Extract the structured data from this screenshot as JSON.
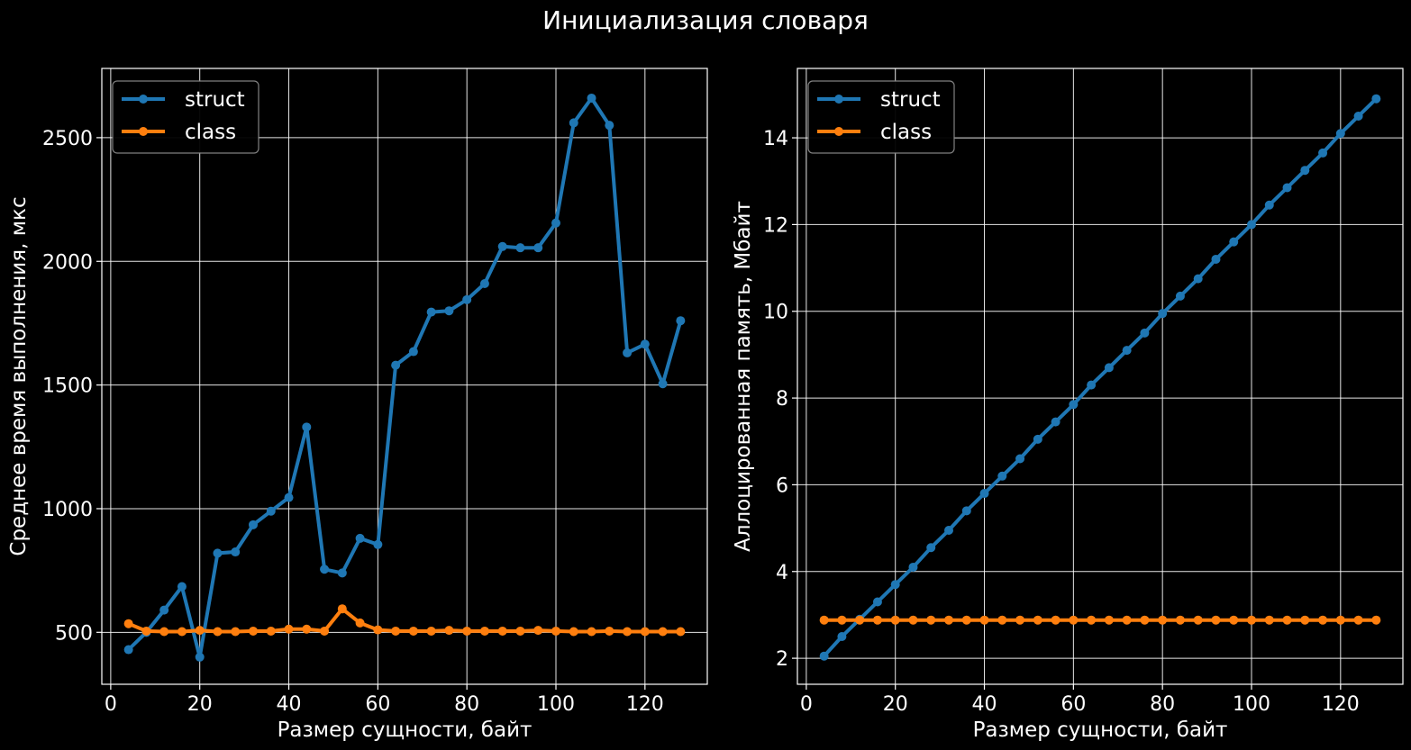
{
  "figure": {
    "title": "Инициализация словаря"
  },
  "colors": {
    "struct": "#1f77b4",
    "class": "#ff7f0e",
    "background": "#000000",
    "foreground": "#ffffff"
  },
  "chart_data": [
    {
      "type": "line",
      "xlabel": "Размер сущности, байт",
      "ylabel": "Среднее время выполнения, мкс",
      "xlim": [
        -2,
        134
      ],
      "ylim": [
        290,
        2780
      ],
      "xticks": [
        0,
        20,
        40,
        60,
        80,
        100,
        120
      ],
      "yticks": [
        500,
        1000,
        1500,
        2000,
        2500
      ],
      "grid": true,
      "legend": "top-left",
      "x": [
        4,
        8,
        12,
        16,
        20,
        24,
        28,
        32,
        36,
        40,
        44,
        48,
        52,
        56,
        60,
        64,
        68,
        72,
        76,
        80,
        84,
        88,
        92,
        96,
        100,
        104,
        108,
        112,
        116,
        120,
        124,
        128
      ],
      "series": [
        {
          "name": "struct",
          "values": [
            430,
            500,
            590,
            685,
            400,
            820,
            825,
            935,
            990,
            1045,
            1330,
            755,
            740,
            880,
            855,
            1580,
            1635,
            1795,
            1800,
            1845,
            1910,
            2060,
            2055,
            2055,
            2155,
            2560,
            2660,
            2550,
            1630,
            1665,
            1505,
            1760
          ]
        },
        {
          "name": "class",
          "values": [
            535,
            505,
            503,
            503,
            508,
            503,
            503,
            505,
            505,
            513,
            513,
            505,
            595,
            538,
            510,
            505,
            505,
            505,
            508,
            505,
            505,
            505,
            505,
            508,
            505,
            503,
            503,
            505,
            503,
            503,
            503,
            503
          ]
        }
      ]
    },
    {
      "type": "line",
      "xlabel": "Размер сущности, байт",
      "ylabel": "Аллоцированная память, Мбайт",
      "xlim": [
        -2,
        134
      ],
      "ylim": [
        1.4,
        15.6
      ],
      "xticks": [
        0,
        20,
        40,
        60,
        80,
        100,
        120
      ],
      "yticks": [
        2,
        4,
        6,
        8,
        10,
        12,
        14
      ],
      "grid": true,
      "legend": "top-left",
      "x": [
        4,
        8,
        12,
        16,
        20,
        24,
        28,
        32,
        36,
        40,
        44,
        48,
        52,
        56,
        60,
        64,
        68,
        72,
        76,
        80,
        84,
        88,
        92,
        96,
        100,
        104,
        108,
        112,
        116,
        120,
        124,
        128
      ],
      "series": [
        {
          "name": "struct",
          "values": [
            2.05,
            2.5,
            2.9,
            3.3,
            3.7,
            4.1,
            4.55,
            4.95,
            5.4,
            5.8,
            6.2,
            6.6,
            7.05,
            7.45,
            7.85,
            8.3,
            8.7,
            9.1,
            9.5,
            9.95,
            10.35,
            10.75,
            11.2,
            11.6,
            12.0,
            12.45,
            12.85,
            13.25,
            13.65,
            14.1,
            14.5,
            14.9
          ]
        },
        {
          "name": "class",
          "values": [
            2.88,
            2.88,
            2.88,
            2.88,
            2.88,
            2.88,
            2.88,
            2.88,
            2.88,
            2.88,
            2.88,
            2.88,
            2.88,
            2.88,
            2.88,
            2.88,
            2.88,
            2.88,
            2.88,
            2.88,
            2.88,
            2.88,
            2.88,
            2.88,
            2.88,
            2.88,
            2.88,
            2.88,
            2.88,
            2.88,
            2.88,
            2.88
          ]
        }
      ]
    }
  ]
}
